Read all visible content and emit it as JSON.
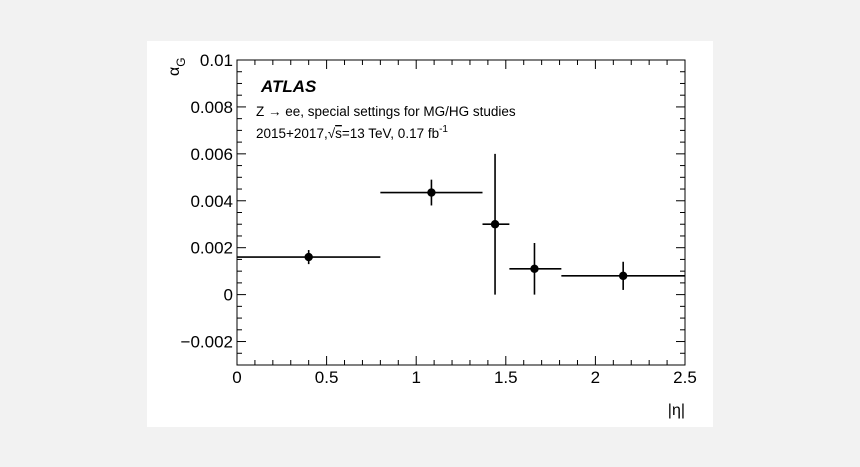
{
  "chart_data": {
    "type": "scatter",
    "title": "",
    "annotations": {
      "experiment": "ATLAS",
      "process": "Z → ee, special settings for MG/HG studies",
      "dataset_prefix": "2015+2017,",
      "sqrt_symbol": "√",
      "dataset_s": "s",
      "dataset_energy": "=13 TeV, 0.17 fb",
      "dataset_lumi_exp": "-1"
    },
    "xlabel": "|η|",
    "ylabel": "α",
    "ylabel_subscript": "G",
    "xlim": [
      0,
      2.5
    ],
    "ylim": [
      -0.003,
      0.01
    ],
    "x_ticks": [
      "0",
      "0.5",
      "1",
      "1.5",
      "2",
      "2.5"
    ],
    "y_ticks": [
      "−0.002",
      "0",
      "0.002",
      "0.004",
      "0.006",
      "0.008",
      "0.01"
    ],
    "grid": false,
    "series": [
      {
        "points": [
          {
            "x": 0.4,
            "xlo": 0.0,
            "xhi": 0.8,
            "y": 0.0016,
            "ylo": 0.0013,
            "yhi": 0.0019
          },
          {
            "x": 1.085,
            "xlo": 0.8,
            "xhi": 1.37,
            "y": 0.00435,
            "ylo": 0.0038,
            "yhi": 0.0049
          },
          {
            "x": 1.44,
            "xlo": 1.37,
            "xhi": 1.52,
            "y": 0.003,
            "ylo": 0.0,
            "yhi": 0.006
          },
          {
            "x": 1.66,
            "xlo": 1.52,
            "xhi": 1.81,
            "y": 0.0011,
            "ylo": 0.0,
            "yhi": 0.0022
          },
          {
            "x": 2.155,
            "xlo": 1.81,
            "xhi": 2.5,
            "y": 0.0008,
            "ylo": 0.0002,
            "yhi": 0.0014
          }
        ]
      }
    ]
  }
}
